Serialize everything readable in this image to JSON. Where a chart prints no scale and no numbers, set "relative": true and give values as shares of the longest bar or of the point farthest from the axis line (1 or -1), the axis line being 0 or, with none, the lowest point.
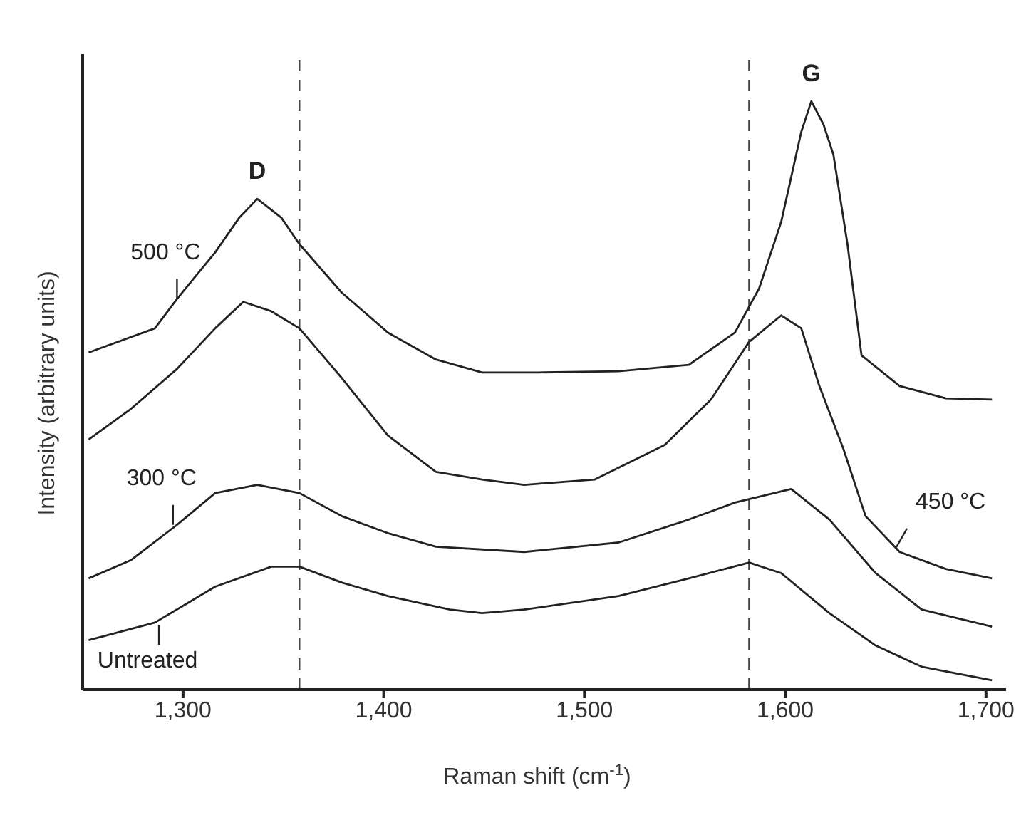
{
  "chart_data": {
    "type": "line",
    "relative": true,
    "xlabel": "Raman shift (cm$^{-1}$)",
    "ylabel": "Intensity (arbitrary units)",
    "xlim": [
      1250,
      1710
    ],
    "xticks": [
      {
        "value": 1300,
        "label": "1,300"
      },
      {
        "value": 1400,
        "label": "1,400"
      },
      {
        "value": 1500,
        "label": "1,500"
      },
      {
        "value": 1600,
        "label": "1,600"
      },
      {
        "value": 1700,
        "label": "1,700"
      }
    ],
    "grid": false,
    "marker": "none",
    "line_style": "solid",
    "series": [
      {
        "color": "#222222",
        "x": [
          1253,
          1286,
          1297,
          1316,
          1328,
          1337,
          1349,
          1358,
          1379,
          1402,
          1426,
          1449,
          1477,
          1517,
          1552,
          1575,
          1587,
          1598,
          1608,
          1613,
          1619,
          1624,
          1631,
          1638,
          1657,
          1680,
          1703
        ],
        "values": [
          0.573,
          0.614,
          0.664,
          0.743,
          0.802,
          0.834,
          0.802,
          0.757,
          0.675,
          0.607,
          0.561,
          0.539,
          0.539,
          0.541,
          0.552,
          0.607,
          0.682,
          0.795,
          0.948,
          1,
          0.961,
          0.909,
          0.757,
          0.568,
          0.516,
          0.495,
          0.493
        ]
      },
      {
        "color": "#222222",
        "x": [
          1253,
          1274,
          1297,
          1316,
          1330,
          1344,
          1358,
          1379,
          1402,
          1426,
          1449,
          1470,
          1505,
          1540,
          1563,
          1582,
          1598,
          1608,
          1617,
          1629,
          1640,
          1657,
          1680,
          1703
        ],
        "values": [
          0.425,
          0.477,
          0.545,
          0.614,
          0.659,
          0.643,
          0.614,
          0.53,
          0.432,
          0.37,
          0.357,
          0.348,
          0.357,
          0.416,
          0.493,
          0.591,
          0.636,
          0.614,
          0.516,
          0.409,
          0.295,
          0.234,
          0.205,
          0.189
        ]
      },
      {
        "color": "#222222",
        "x": [
          1253,
          1274,
          1297,
          1316,
          1337,
          1358,
          1379,
          1402,
          1426,
          1470,
          1517,
          1552,
          1575,
          1603,
          1622,
          1645,
          1668,
          1703
        ],
        "values": [
          0.189,
          0.22,
          0.28,
          0.334,
          0.348,
          0.334,
          0.295,
          0.266,
          0.243,
          0.234,
          0.25,
          0.289,
          0.318,
          0.341,
          0.289,
          0.198,
          0.136,
          0.107
        ]
      },
      {
        "color": "#222222",
        "x": [
          1253,
          1286,
          1316,
          1344,
          1358,
          1379,
          1402,
          1433,
          1449,
          1470,
          1517,
          1552,
          1582,
          1598,
          1622,
          1645,
          1668,
          1703
        ],
        "values": [
          0.084,
          0.114,
          0.175,
          0.209,
          0.209,
          0.182,
          0.159,
          0.136,
          0.13,
          0.136,
          0.159,
          0.189,
          0.216,
          0.198,
          0.13,
          0.075,
          0.039,
          0.016
        ]
      }
    ],
    "ref_lines": [
      {
        "axis": "x",
        "value": 1358,
        "color": "#444444",
        "line_style": "dashed"
      },
      {
        "axis": "x",
        "value": 1582,
        "color": "#444444",
        "line_style": "dashed"
      }
    ],
    "annotations": [
      {
        "text": "D",
        "x": 1337,
        "y": 0.834
      },
      {
        "text": "G",
        "x": 1613,
        "y": 1
      },
      {
        "text": "500 °C",
        "x": 1297,
        "y": 0.664
      },
      {
        "text": "300 °C",
        "x": 1295,
        "y": 0.28
      },
      {
        "text": "Untreated",
        "x": 1288,
        "y": 0.11
      },
      {
        "text": "450 °C",
        "x": 1655,
        "y": 0.24
      }
    ]
  }
}
